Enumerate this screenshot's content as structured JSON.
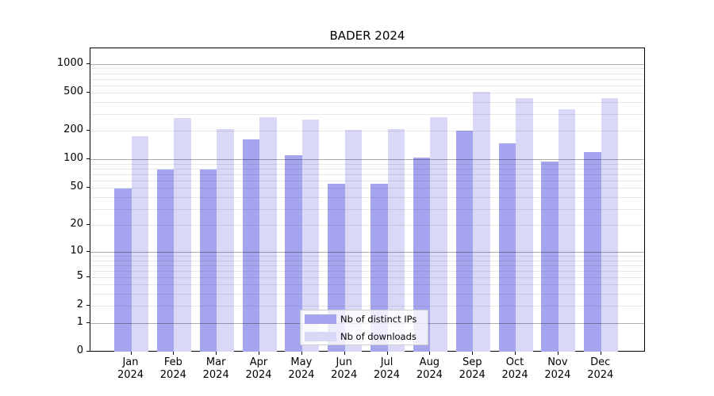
{
  "title": "BADER 2024",
  "legend": {
    "entries": [
      {
        "label": "Nb of distinct IPs",
        "color": "#a5a5ef"
      },
      {
        "label": "Nb of downloads",
        "color": "#d9d9f7"
      }
    ]
  },
  "chart_data": {
    "type": "bar",
    "title": "BADER 2024",
    "xlabel": "",
    "ylabel": "",
    "yscale": "log10(1+x)",
    "ylim": [
      0,
      1435
    ],
    "grid": true,
    "legend_position": "lower center",
    "categories": [
      "Jan 2024",
      "Feb 2024",
      "Mar 2024",
      "Apr 2024",
      "May 2024",
      "Jun 2024",
      "Jul 2024",
      "Aug 2024",
      "Sep 2024",
      "Oct 2024",
      "Nov 2024",
      "Dec 2024"
    ],
    "series": [
      {
        "name": "Nb of distinct IPs",
        "color": "#a5a5ef",
        "values": [
          49,
          78,
          79,
          163,
          111,
          55,
          56,
          104,
          200,
          147,
          95,
          120
        ]
      },
      {
        "name": "Nb of downloads",
        "color": "#d9d9f7",
        "values": [
          175,
          272,
          210,
          277,
          262,
          207,
          209,
          278,
          515,
          440,
          340,
          440
        ]
      }
    ],
    "yticks": [
      0,
      1,
      2,
      5,
      10,
      20,
      50,
      100,
      200,
      500,
      1000
    ],
    "major_gridlines": [
      1,
      10,
      100,
      1000
    ],
    "minor_gridlines": [
      2,
      3,
      4,
      5,
      6,
      7,
      8,
      9,
      20,
      30,
      40,
      50,
      60,
      70,
      80,
      90,
      200,
      300,
      400,
      500,
      600,
      700,
      800,
      900
    ]
  }
}
